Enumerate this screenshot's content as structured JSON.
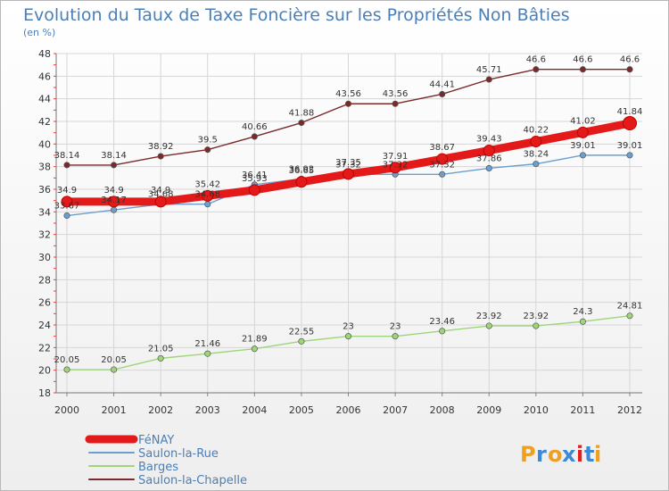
{
  "chart_data": {
    "type": "line",
    "title": "Evolution du Taux de Taxe Foncière sur les Propriétés Non Bâties",
    "subtitle": "(en %)",
    "xlabel": "",
    "ylabel": "",
    "x": [
      "2000",
      "2001",
      "2002",
      "2003",
      "2004",
      "2005",
      "2006",
      "2007",
      "2008",
      "2009",
      "2010",
      "2011",
      "2012"
    ],
    "ylim": [
      18,
      48
    ],
    "yticks": [
      "18",
      "20",
      "22",
      "24",
      "26",
      "28",
      "30",
      "32",
      "34",
      "36",
      "38",
      "40",
      "42",
      "44",
      "46",
      "48"
    ],
    "grid": true,
    "legend_position": "bottom-left",
    "series": [
      {
        "name": "Saulon-la-Chapelle",
        "color": "#7a2a2a",
        "values": [
          38.14,
          38.14,
          38.92,
          39.5,
          40.66,
          41.88,
          43.56,
          43.56,
          44.41,
          45.71,
          46.6,
          46.6,
          46.6
        ],
        "labels": [
          "38.14",
          "38.14",
          "38.92",
          "39.5",
          "40.66",
          "41.88",
          "43.56",
          "43.56",
          "44.41",
          "45.71",
          "46.6",
          "46.6",
          "46.6"
        ]
      },
      {
        "name": "Saulon-la-Rue",
        "color": "#6a9fd0",
        "values": [
          33.67,
          34.17,
          34.68,
          34.68,
          36.41,
          36.92,
          37.32,
          37.32,
          37.32,
          37.86,
          38.24,
          39.01,
          39.01
        ],
        "labels": [
          "33.67",
          "34.17",
          "34.68",
          "34.68",
          "36.41",
          "36.92",
          "37.32",
          "37.32",
          "37.32",
          "37.86",
          "38.24",
          "39.01",
          "39.01"
        ]
      },
      {
        "name": "Barges",
        "color": "#9fd57a",
        "values": [
          20.05,
          20.05,
          21.05,
          21.46,
          21.89,
          22.55,
          23,
          23,
          23.46,
          23.92,
          23.92,
          24.3,
          24.81
        ],
        "labels": [
          "20.05",
          "20.05",
          "21.05",
          "21.46",
          "21.89",
          "22.55",
          "23",
          "23",
          "23.46",
          "23.92",
          "23.92",
          "24.3",
          "24.81"
        ]
      },
      {
        "name": "FéNAY",
        "color": "#e41a1a",
        "values": [
          34.9,
          34.9,
          34.9,
          35.42,
          35.93,
          36.65,
          37.35,
          37.91,
          38.67,
          39.43,
          40.22,
          41.02,
          41.84
        ],
        "labels": [
          "34.9",
          "34.9",
          "34.9",
          "35.42",
          "35.93",
          "36.65",
          "37.35",
          "37.91",
          "38.67",
          "39.43",
          "40.22",
          "41.02",
          "41.84"
        ]
      }
    ],
    "legend": [
      "FéNAY",
      "Saulon-la-Rue",
      "Barges",
      "Saulon-la-Chapelle"
    ]
  },
  "logo": {
    "letters": [
      "P",
      "r",
      "o",
      "x",
      "i",
      "t",
      "i"
    ],
    "colors": [
      "#f0a020",
      "#3a8ad8",
      "#f0a020",
      "#3a8ad8",
      "#e02020",
      "#3a8ad8",
      "#f0a020"
    ]
  }
}
